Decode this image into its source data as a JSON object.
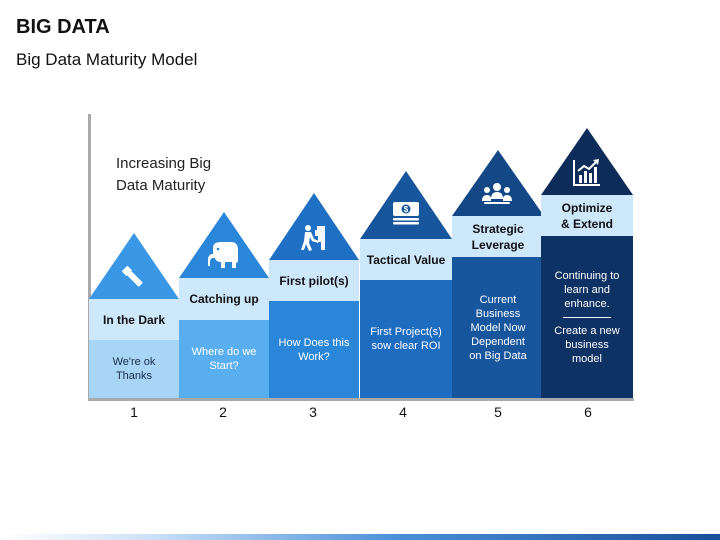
{
  "header": {
    "title": "BIG DATA",
    "subtitle": "Big Data Maturity Model"
  },
  "caption": {
    "line1": "Increasing Big",
    "line2": "Data Maturity"
  },
  "steps": [
    {
      "number": "1",
      "head": "In the Dark",
      "body": "We're ok Thanks",
      "icon": "flashlight-icon",
      "color": "#59aef0",
      "head_color": "#cde7fb"
    },
    {
      "number": "2",
      "head": "Catching up",
      "body": "Where do we Start?",
      "icon": "elephant-icon",
      "color": "#3a97e6",
      "head_color": "#cde7fb"
    },
    {
      "number": "3",
      "head": "First pilot(s)",
      "body": "How Does this Work?",
      "icon": "climber-icon",
      "color": "#1f7fd6",
      "head_color": "#cde7fb"
    },
    {
      "number": "4",
      "head": "Tactical Value",
      "body": "First Project(s) sow clear ROI",
      "icon": "money-icon",
      "color": "#1a5fae",
      "head_color": "#cde7fb"
    },
    {
      "number": "5",
      "head_line1": "Strategic",
      "head_line2": "Leverage",
      "body": "Current Business Model Now Dependent on Big Data",
      "icon": "team-icon",
      "color": "#164b8c",
      "head_color": "#cde7fb"
    },
    {
      "number": "6",
      "head_line1": "Optimize",
      "head_line2": "& Extend",
      "body_line1": "Continuing to learn and enhance.",
      "body_line2": "Create a new business model",
      "icon": "growth-chart-icon",
      "color": "#0f2f5f",
      "head_color": "#cde7fb"
    }
  ]
}
